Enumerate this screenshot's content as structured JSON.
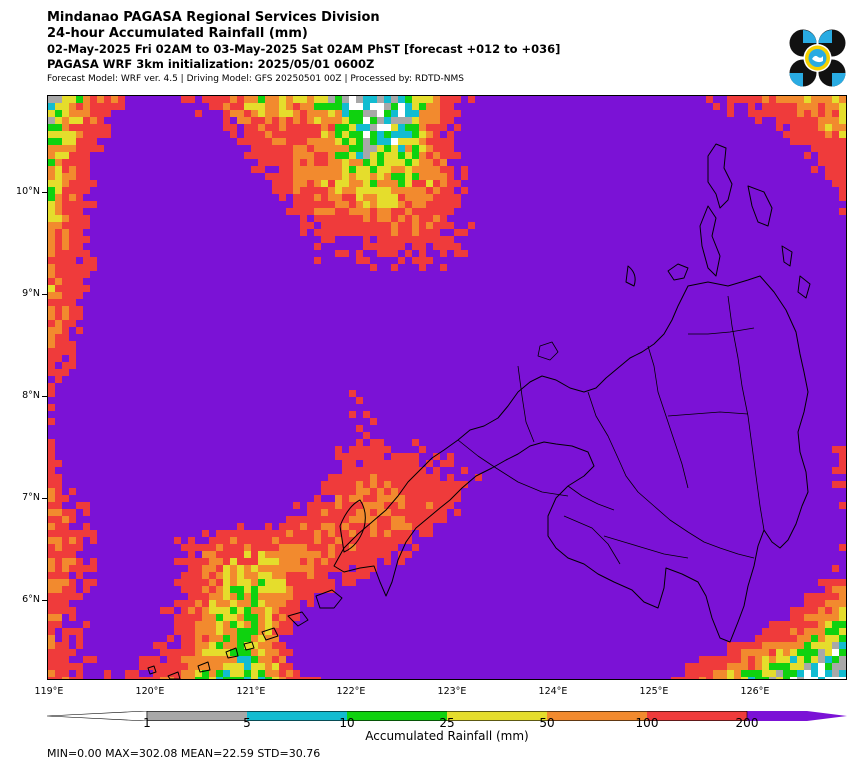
{
  "header": {
    "title_line1": "Mindanao PAGASA Regional Services Division",
    "title_line2": "24-hour Accumulated Rainfall (mm)",
    "period": "02-May-2025 Fri 02AM to 03-May-2025 Sat 02AM PhST [forecast +012 to +036]",
    "init": "PAGASA WRF 3km initialization: 2025/05/01 0600Z",
    "meta": "Forecast Model: WRF ver. 4.5 | Driving Model: GFS 20250501 00Z | Processed by: RDTD-NMS"
  },
  "logo": {
    "icon": "pagasa-logo-icon",
    "colors": [
      "#111111",
      "#29abe2",
      "#f5d100"
    ]
  },
  "map": {
    "lon_ticks": [
      "119°E",
      "120°E",
      "121°E",
      "122°E",
      "123°E",
      "124°E",
      "125°E",
      "126°E"
    ],
    "lat_ticks": [
      "10°N",
      "9°N",
      "8°N",
      "7°N",
      "6°N"
    ],
    "lon_range": [
      119.0,
      126.9
    ],
    "lat_range": [
      5.2,
      11.0
    ],
    "coastline_color": "#000000",
    "islands_visible": [
      "Mindanao",
      "Visayas",
      "Palawan (north-west)",
      "Sulu Archipelago",
      "Basilan"
    ]
  },
  "colorbar": {
    "ticks": [
      "1",
      "5",
      "10",
      "25",
      "50",
      "100",
      "200"
    ],
    "label": "Accumulated Rainfall (mm)",
    "colors": [
      {
        "range": "1-5",
        "color": "#a8a8a8"
      },
      {
        "range": "5-10",
        "color": "#12bcd1"
      },
      {
        "range": "10-25",
        "color": "#0fd20f"
      },
      {
        "range": "25-50",
        "color": "#e5dd2c"
      },
      {
        "range": "50-100",
        "color": "#f28a2e"
      },
      {
        "range": "100-200",
        "color": "#ef3b3b"
      },
      {
        "range": ">200",
        "color": "#7b12d6"
      }
    ]
  },
  "stats": {
    "text": "MIN=0.00   MAX=302.08   MEAN=22.59   STD=30.76"
  }
}
